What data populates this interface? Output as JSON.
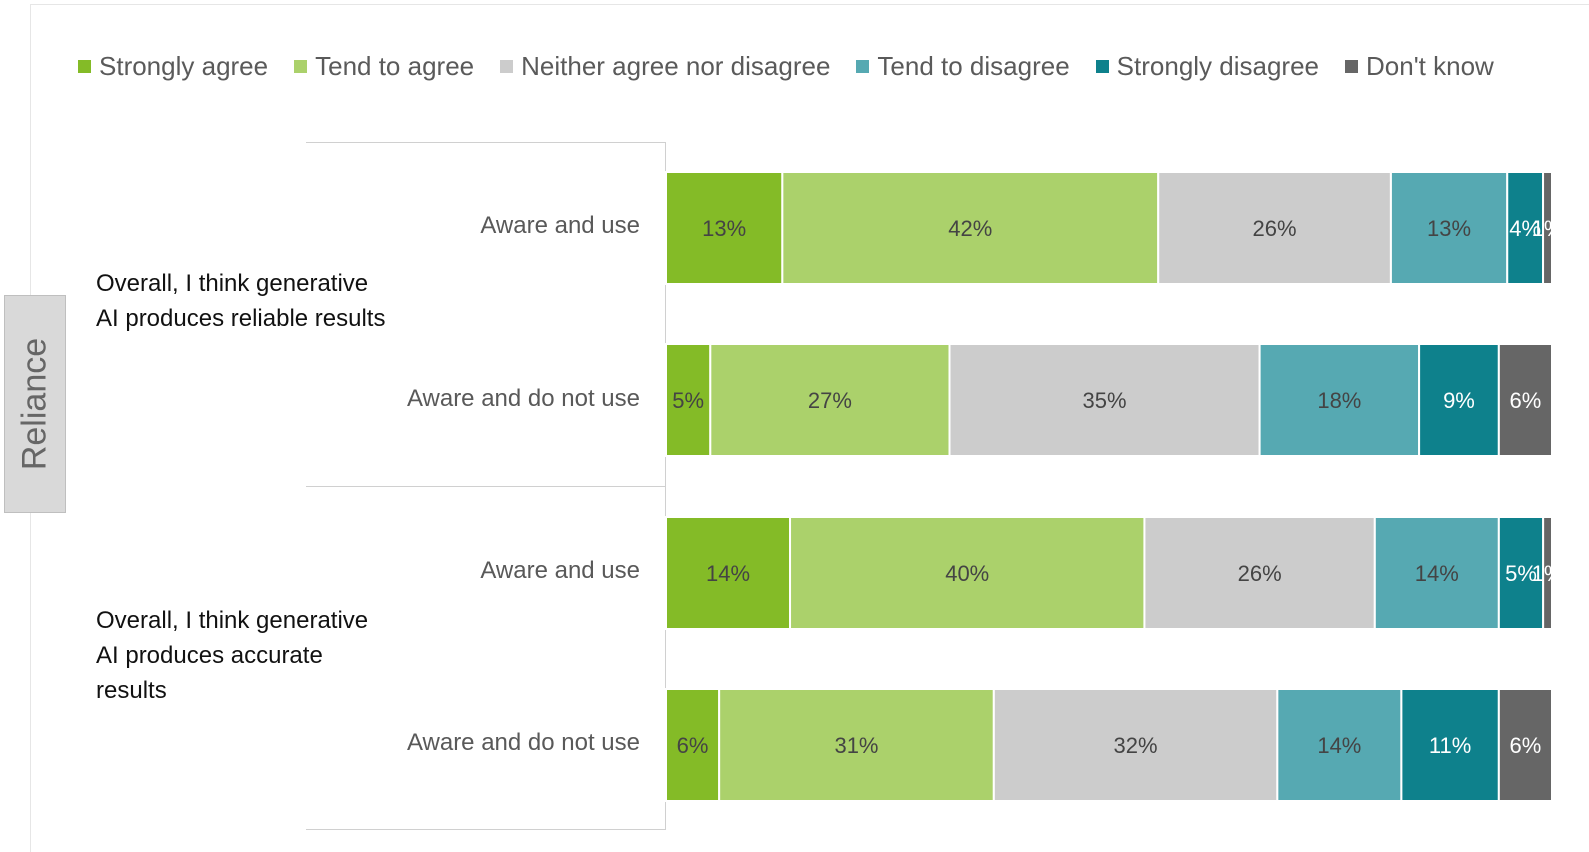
{
  "section_label": "Reliance",
  "chart_data": {
    "type": "bar",
    "orientation": "horizontal",
    "stacked": true,
    "legend_position": "top",
    "categories": [
      "Strongly agree",
      "Tend to agree",
      "Neither agree nor disagree",
      "Tend to disagree",
      "Strongly disagree",
      "Don't know"
    ],
    "colors": [
      "#84bb27",
      "#abd16b",
      "#cccccc",
      "#56a9b2",
      "#0e818c",
      "#666666"
    ],
    "label_colors": [
      "#444444",
      "#444444",
      "#444444",
      "#444444",
      "#ffffff",
      "#ffffff"
    ],
    "groups": [
      {
        "label": "Overall, I think generative AI produces reliable results",
        "rows": [
          {
            "label": "Aware and use",
            "values": [
              13,
              42,
              26,
              13,
              4,
              1
            ]
          },
          {
            "label": "Aware and do not use",
            "values": [
              5,
              27,
              35,
              18,
              9,
              6
            ]
          }
        ]
      },
      {
        "label": "Overall, I think generative AI produces accurate results",
        "rows": [
          {
            "label": "Aware and use",
            "values": [
              14,
              40,
              26,
              14,
              5,
              1
            ]
          },
          {
            "label": "Aware and do not use",
            "values": [
              6,
              31,
              32,
              14,
              11,
              6
            ]
          }
        ]
      }
    ]
  }
}
